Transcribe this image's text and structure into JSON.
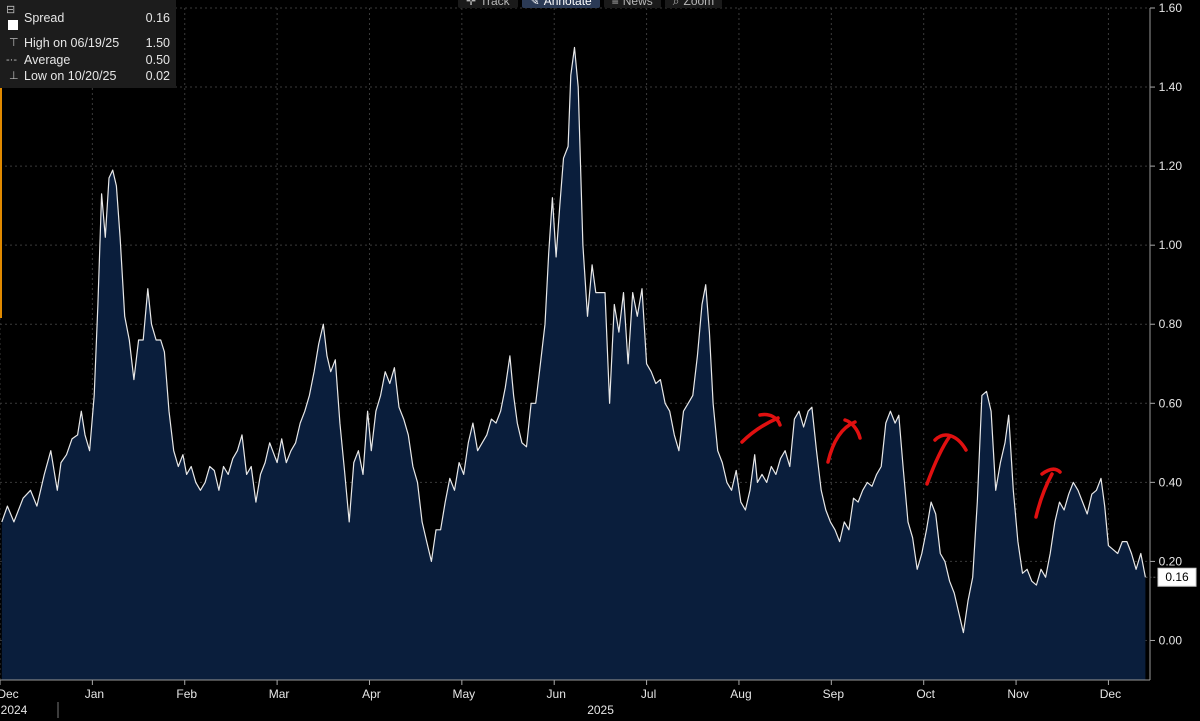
{
  "toolbar": [
    {
      "label": "Track",
      "icon": "crosshair-icon",
      "active": false
    },
    {
      "label": "Annotate",
      "icon": "pencil-icon",
      "active": true
    },
    {
      "label": "News",
      "icon": "news-icon",
      "active": false
    },
    {
      "label": "Zoom",
      "icon": "zoom-icon",
      "active": false
    }
  ],
  "legend": {
    "series": {
      "label": "Spread",
      "value": "0.16"
    },
    "high": {
      "label": "High on 06/19/25",
      "value": "1.50"
    },
    "average": {
      "label": "Average",
      "value": "0.50"
    },
    "low": {
      "label": "Low on 10/20/25",
      "value": "0.02"
    }
  },
  "last_value_label": "0.16",
  "colors": {
    "background": "#000000",
    "area": "#0a1e3c",
    "line": "#e8e8e8",
    "grid": "#3a3a3a",
    "annotation": "#e01010"
  },
  "chart_data": {
    "type": "area",
    "series_name": "Spread",
    "ylim": [
      -0.1,
      1.6
    ],
    "yticks": [
      "0.00",
      "0.20",
      "0.40",
      "0.60",
      "0.80",
      "1.00",
      "1.20",
      "1.40",
      "1.60"
    ],
    "xlim": [
      0,
      12.15
    ],
    "xticks": [
      {
        "label": "Dec",
        "x": 0
      },
      {
        "label": "Jan",
        "x": 1
      },
      {
        "label": "Feb",
        "x": 2
      },
      {
        "label": "Mar",
        "x": 3
      },
      {
        "label": "Apr",
        "x": 4
      },
      {
        "label": "May",
        "x": 5
      },
      {
        "label": "Jun",
        "x": 6
      },
      {
        "label": "Jul",
        "x": 7
      },
      {
        "label": "Aug",
        "x": 8
      },
      {
        "label": "Sep",
        "x": 9
      },
      {
        "label": "Oct",
        "x": 10
      },
      {
        "label": "Nov",
        "x": 11
      },
      {
        "label": "Dec",
        "x": 12
      }
    ],
    "year_labels": [
      {
        "label": "2024",
        "x": 0
      },
      {
        "label": "2025",
        "x": 6.35
      }
    ],
    "points": [
      [
        0.02,
        0.3
      ],
      [
        0.08,
        0.34
      ],
      [
        0.15,
        0.3
      ],
      [
        0.25,
        0.36
      ],
      [
        0.33,
        0.38
      ],
      [
        0.4,
        0.34
      ],
      [
        0.48,
        0.42
      ],
      [
        0.55,
        0.48
      ],
      [
        0.62,
        0.38
      ],
      [
        0.66,
        0.45
      ],
      [
        0.72,
        0.47
      ],
      [
        0.78,
        0.51
      ],
      [
        0.84,
        0.52
      ],
      [
        0.88,
        0.58
      ],
      [
        0.92,
        0.52
      ],
      [
        0.97,
        0.48
      ],
      [
        1.02,
        0.62
      ],
      [
        1.06,
        0.85
      ],
      [
        1.1,
        1.13
      ],
      [
        1.14,
        1.02
      ],
      [
        1.18,
        1.17
      ],
      [
        1.22,
        1.19
      ],
      [
        1.26,
        1.15
      ],
      [
        1.3,
        1.02
      ],
      [
        1.35,
        0.82
      ],
      [
        1.4,
        0.76
      ],
      [
        1.45,
        0.66
      ],
      [
        1.5,
        0.76
      ],
      [
        1.55,
        0.76
      ],
      [
        1.6,
        0.89
      ],
      [
        1.64,
        0.8
      ],
      [
        1.69,
        0.76
      ],
      [
        1.74,
        0.76
      ],
      [
        1.78,
        0.73
      ],
      [
        1.83,
        0.58
      ],
      [
        1.88,
        0.48
      ],
      [
        1.93,
        0.44
      ],
      [
        1.98,
        0.47
      ],
      [
        2.02,
        0.42
      ],
      [
        2.07,
        0.44
      ],
      [
        2.12,
        0.4
      ],
      [
        2.17,
        0.38
      ],
      [
        2.22,
        0.4
      ],
      [
        2.27,
        0.44
      ],
      [
        2.32,
        0.43
      ],
      [
        2.37,
        0.38
      ],
      [
        2.42,
        0.44
      ],
      [
        2.47,
        0.42
      ],
      [
        2.52,
        0.46
      ],
      [
        2.57,
        0.48
      ],
      [
        2.62,
        0.52
      ],
      [
        2.67,
        0.42
      ],
      [
        2.72,
        0.44
      ],
      [
        2.77,
        0.35
      ],
      [
        2.82,
        0.42
      ],
      [
        2.87,
        0.45
      ],
      [
        2.92,
        0.5
      ],
      [
        3.0,
        0.45
      ],
      [
        3.05,
        0.51
      ],
      [
        3.1,
        0.45
      ],
      [
        3.15,
        0.48
      ],
      [
        3.2,
        0.5
      ],
      [
        3.25,
        0.55
      ],
      [
        3.3,
        0.58
      ],
      [
        3.35,
        0.62
      ],
      [
        3.4,
        0.68
      ],
      [
        3.45,
        0.75
      ],
      [
        3.5,
        0.8
      ],
      [
        3.54,
        0.72
      ],
      [
        3.58,
        0.68
      ],
      [
        3.63,
        0.71
      ],
      [
        3.68,
        0.55
      ],
      [
        3.73,
        0.43
      ],
      [
        3.78,
        0.3
      ],
      [
        3.83,
        0.45
      ],
      [
        3.88,
        0.48
      ],
      [
        3.93,
        0.42
      ],
      [
        3.98,
        0.58
      ],
      [
        4.02,
        0.48
      ],
      [
        4.07,
        0.58
      ],
      [
        4.12,
        0.62
      ],
      [
        4.17,
        0.68
      ],
      [
        4.22,
        0.65
      ],
      [
        4.27,
        0.69
      ],
      [
        4.32,
        0.59
      ],
      [
        4.37,
        0.56
      ],
      [
        4.42,
        0.52
      ],
      [
        4.47,
        0.44
      ],
      [
        4.52,
        0.4
      ],
      [
        4.57,
        0.3
      ],
      [
        4.62,
        0.25
      ],
      [
        4.67,
        0.2
      ],
      [
        4.72,
        0.28
      ],
      [
        4.77,
        0.28
      ],
      [
        4.82,
        0.35
      ],
      [
        4.87,
        0.41
      ],
      [
        4.92,
        0.38
      ],
      [
        4.97,
        0.45
      ],
      [
        5.02,
        0.42
      ],
      [
        5.07,
        0.5
      ],
      [
        5.12,
        0.55
      ],
      [
        5.17,
        0.48
      ],
      [
        5.22,
        0.5
      ],
      [
        5.27,
        0.52
      ],
      [
        5.32,
        0.56
      ],
      [
        5.37,
        0.55
      ],
      [
        5.42,
        0.58
      ],
      [
        5.47,
        0.64
      ],
      [
        5.52,
        0.72
      ],
      [
        5.56,
        0.62
      ],
      [
        5.6,
        0.55
      ],
      [
        5.65,
        0.5
      ],
      [
        5.7,
        0.49
      ],
      [
        5.75,
        0.6
      ],
      [
        5.8,
        0.6
      ],
      [
        5.85,
        0.7
      ],
      [
        5.9,
        0.8
      ],
      [
        5.94,
        0.98
      ],
      [
        5.98,
        1.12
      ],
      [
        6.02,
        0.97
      ],
      [
        6.06,
        1.1
      ],
      [
        6.1,
        1.22
      ],
      [
        6.15,
        1.25
      ],
      [
        6.18,
        1.43
      ],
      [
        6.22,
        1.5
      ],
      [
        6.26,
        1.4
      ],
      [
        6.31,
        1.0
      ],
      [
        6.36,
        0.82
      ],
      [
        6.41,
        0.95
      ],
      [
        6.45,
        0.88
      ],
      [
        6.5,
        0.88
      ],
      [
        6.55,
        0.88
      ],
      [
        6.6,
        0.6
      ],
      [
        6.65,
        0.85
      ],
      [
        6.7,
        0.78
      ],
      [
        6.75,
        0.88
      ],
      [
        6.8,
        0.7
      ],
      [
        6.85,
        0.88
      ],
      [
        6.9,
        0.82
      ],
      [
        6.95,
        0.89
      ],
      [
        7.0,
        0.7
      ],
      [
        7.05,
        0.68
      ],
      [
        7.1,
        0.65
      ],
      [
        7.15,
        0.66
      ],
      [
        7.2,
        0.6
      ],
      [
        7.25,
        0.58
      ],
      [
        7.3,
        0.52
      ],
      [
        7.35,
        0.48
      ],
      [
        7.4,
        0.58
      ],
      [
        7.45,
        0.6
      ],
      [
        7.5,
        0.62
      ],
      [
        7.55,
        0.72
      ],
      [
        7.6,
        0.85
      ],
      [
        7.64,
        0.9
      ],
      [
        7.68,
        0.78
      ],
      [
        7.72,
        0.6
      ],
      [
        7.77,
        0.48
      ],
      [
        7.82,
        0.45
      ],
      [
        7.87,
        0.4
      ],
      [
        7.92,
        0.38
      ],
      [
        7.97,
        0.43
      ],
      [
        8.02,
        0.35
      ],
      [
        8.07,
        0.33
      ],
      [
        8.12,
        0.38
      ],
      [
        8.17,
        0.47
      ],
      [
        8.2,
        0.4
      ],
      [
        8.25,
        0.42
      ],
      [
        8.3,
        0.4
      ],
      [
        8.35,
        0.44
      ],
      [
        8.4,
        0.42
      ],
      [
        8.45,
        0.46
      ],
      [
        8.5,
        0.48
      ],
      [
        8.55,
        0.44
      ],
      [
        8.6,
        0.56
      ],
      [
        8.65,
        0.58
      ],
      [
        8.7,
        0.54
      ],
      [
        8.75,
        0.58
      ],
      [
        8.79,
        0.59
      ],
      [
        8.84,
        0.48
      ],
      [
        8.89,
        0.38
      ],
      [
        8.94,
        0.33
      ],
      [
        8.99,
        0.3
      ],
      [
        9.04,
        0.28
      ],
      [
        9.09,
        0.25
      ],
      [
        9.14,
        0.3
      ],
      [
        9.19,
        0.28
      ],
      [
        9.24,
        0.36
      ],
      [
        9.29,
        0.35
      ],
      [
        9.34,
        0.38
      ],
      [
        9.39,
        0.4
      ],
      [
        9.44,
        0.39
      ],
      [
        9.49,
        0.42
      ],
      [
        9.54,
        0.44
      ],
      [
        9.59,
        0.55
      ],
      [
        9.64,
        0.58
      ],
      [
        9.69,
        0.55
      ],
      [
        9.73,
        0.57
      ],
      [
        9.78,
        0.43
      ],
      [
        9.83,
        0.3
      ],
      [
        9.88,
        0.26
      ],
      [
        9.93,
        0.18
      ],
      [
        9.98,
        0.22
      ],
      [
        10.03,
        0.28
      ],
      [
        10.08,
        0.35
      ],
      [
        10.13,
        0.32
      ],
      [
        10.18,
        0.22
      ],
      [
        10.23,
        0.2
      ],
      [
        10.28,
        0.15
      ],
      [
        10.33,
        0.12
      ],
      [
        10.38,
        0.07
      ],
      [
        10.43,
        0.02
      ],
      [
        10.48,
        0.1
      ],
      [
        10.53,
        0.16
      ],
      [
        10.58,
        0.35
      ],
      [
        10.63,
        0.62
      ],
      [
        10.68,
        0.63
      ],
      [
        10.73,
        0.58
      ],
      [
        10.78,
        0.38
      ],
      [
        10.83,
        0.45
      ],
      [
        10.88,
        0.5
      ],
      [
        10.92,
        0.57
      ],
      [
        10.97,
        0.38
      ],
      [
        11.02,
        0.25
      ],
      [
        11.07,
        0.17
      ],
      [
        11.12,
        0.18
      ],
      [
        11.17,
        0.15
      ],
      [
        11.22,
        0.14
      ],
      [
        11.27,
        0.18
      ],
      [
        11.32,
        0.16
      ],
      [
        11.37,
        0.22
      ],
      [
        11.42,
        0.3
      ],
      [
        11.47,
        0.35
      ],
      [
        11.52,
        0.33
      ],
      [
        11.57,
        0.37
      ],
      [
        11.62,
        0.4
      ],
      [
        11.67,
        0.38
      ],
      [
        11.72,
        0.35
      ],
      [
        11.77,
        0.32
      ],
      [
        11.82,
        0.37
      ],
      [
        11.87,
        0.38
      ],
      [
        11.92,
        0.41
      ],
      [
        11.96,
        0.34
      ],
      [
        12.0,
        0.24
      ],
      [
        12.05,
        0.23
      ],
      [
        12.1,
        0.22
      ],
      [
        12.15,
        0.25
      ],
      [
        12.2,
        0.25
      ],
      [
        12.25,
        0.22
      ],
      [
        12.3,
        0.18
      ],
      [
        12.35,
        0.22
      ],
      [
        12.4,
        0.16
      ]
    ]
  }
}
